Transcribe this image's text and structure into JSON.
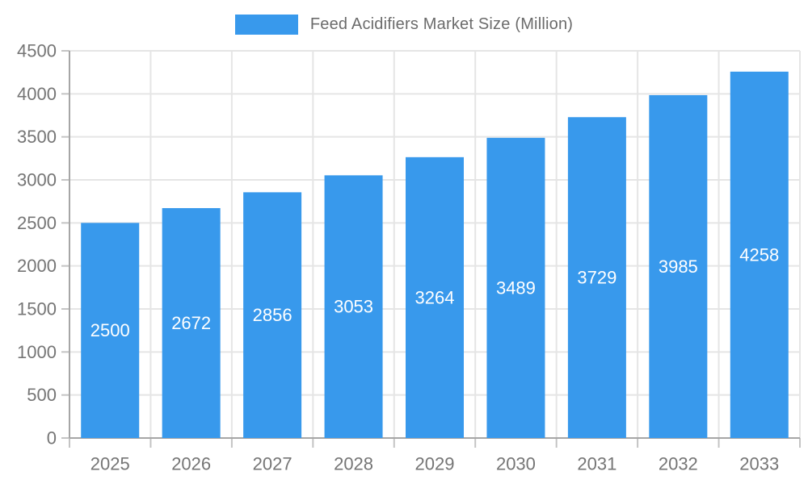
{
  "legend": {
    "label": "Feed Acidifiers Market Size (Million)"
  },
  "chart_data": {
    "type": "bar",
    "title": "Feed Acidifiers Market Size (Million)",
    "legend_entries": [
      "Feed Acidifiers Market Size (Million)"
    ],
    "legend_position": "top",
    "categories": [
      "2025",
      "2026",
      "2027",
      "2028",
      "2029",
      "2030",
      "2031",
      "2032",
      "2033"
    ],
    "values": [
      2500,
      2672,
      2856,
      3053,
      3264,
      3489,
      3729,
      3985,
      4258
    ],
    "xlabel": "",
    "ylabel": "",
    "ylim": [
      0,
      4500
    ],
    "ytick_step": 500,
    "grid": true,
    "colors": {
      "bar": "#3899EC",
      "grid_line": "#e5e5e5",
      "axis_border": "#a6a6a6",
      "tick_mark": "#c4c4c4",
      "tick_label": "#757575",
      "value_label": "#ffffff",
      "background": "#ffffff"
    }
  }
}
